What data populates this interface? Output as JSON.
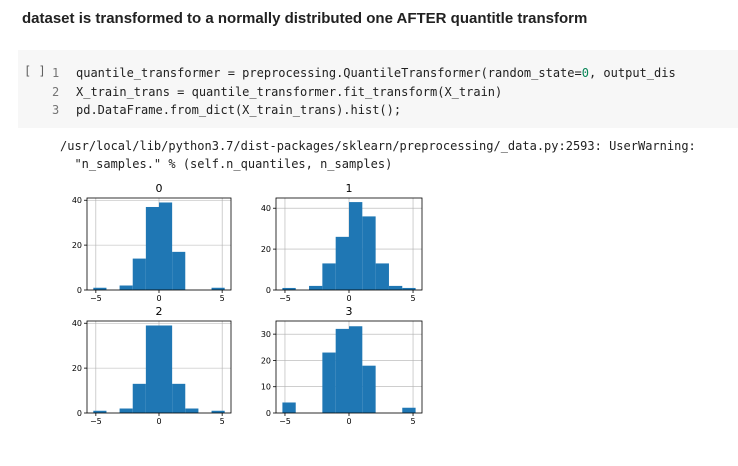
{
  "heading": "dataset is transformed to a normally distributed one AFTER quantitle transform",
  "cell": {
    "run_label": "[ ]",
    "lines": [
      {
        "num": "1",
        "text": "quantile_transformer = preprocessing.QuantileTransformer(random_state=",
        "num_value": "0",
        "tail": ", output_dis"
      },
      {
        "num": "2",
        "text": "X_train_trans = quantile_transformer.fit_transform(X_train)",
        "num_value": "",
        "tail": ""
      },
      {
        "num": "3",
        "text": "pd.DataFrame.from_dict(X_train_trans).hist();",
        "num_value": "",
        "tail": ""
      }
    ]
  },
  "output": {
    "line1": "/usr/local/lib/python3.7/dist-packages/sklearn/preprocessing/_data.py:2593: UserWarning:",
    "line2": "  \"n_samples.\" % (self.n_quantiles, n_samples)"
  },
  "chart_data": [
    {
      "type": "bar",
      "title": "0",
      "bin_edges": [
        -5.2,
        -4.16,
        -3.12,
        -2.08,
        -1.04,
        0,
        1.04,
        2.08,
        3.12,
        4.16,
        5.2
      ],
      "values": [
        1,
        0,
        2,
        14,
        37,
        39,
        17,
        0,
        0,
        1
      ],
      "xlim": [
        -5.7,
        5.7
      ],
      "ylim": [
        0,
        41
      ],
      "xticks": [
        -5,
        0,
        5
      ],
      "yticks": [
        0,
        20,
        40
      ],
      "grid": true,
      "color": "#1f77b4"
    },
    {
      "type": "bar",
      "title": "1",
      "bin_edges": [
        -5.2,
        -4.16,
        -3.12,
        -2.08,
        -1.04,
        0,
        1.04,
        2.08,
        3.12,
        4.16,
        5.2
      ],
      "values": [
        1,
        0,
        2,
        13,
        26,
        43,
        36,
        13,
        2,
        1
      ],
      "xlim": [
        -5.7,
        5.7
      ],
      "ylim": [
        0,
        45
      ],
      "xticks": [
        -5,
        0,
        5
      ],
      "yticks": [
        0,
        20,
        40
      ],
      "grid": true,
      "color": "#1f77b4"
    },
    {
      "type": "bar",
      "title": "2",
      "bin_edges": [
        -5.2,
        -4.16,
        -3.12,
        -2.08,
        -1.04,
        0,
        1.04,
        2.08,
        3.12,
        4.16,
        5.2
      ],
      "values": [
        1,
        0,
        2,
        13,
        39,
        39,
        13,
        2,
        0,
        1
      ],
      "xlim": [
        -5.7,
        5.7
      ],
      "ylim": [
        0,
        41
      ],
      "xticks": [
        -5,
        0,
        5
      ],
      "yticks": [
        0,
        20,
        40
      ],
      "grid": true,
      "color": "#1f77b4"
    },
    {
      "type": "bar",
      "title": "3",
      "bin_edges": [
        -5.2,
        -4.16,
        -3.12,
        -2.08,
        -1.04,
        0,
        1.04,
        2.08,
        3.12,
        4.16,
        5.2
      ],
      "values": [
        4,
        0,
        0,
        23,
        32,
        33,
        18,
        0,
        0,
        2
      ],
      "xlim": [
        -5.7,
        5.7
      ],
      "ylim": [
        0,
        35
      ],
      "xticks": [
        -5,
        0,
        5
      ],
      "yticks": [
        0,
        10,
        20,
        30
      ],
      "grid": true,
      "color": "#1f77b4"
    }
  ]
}
